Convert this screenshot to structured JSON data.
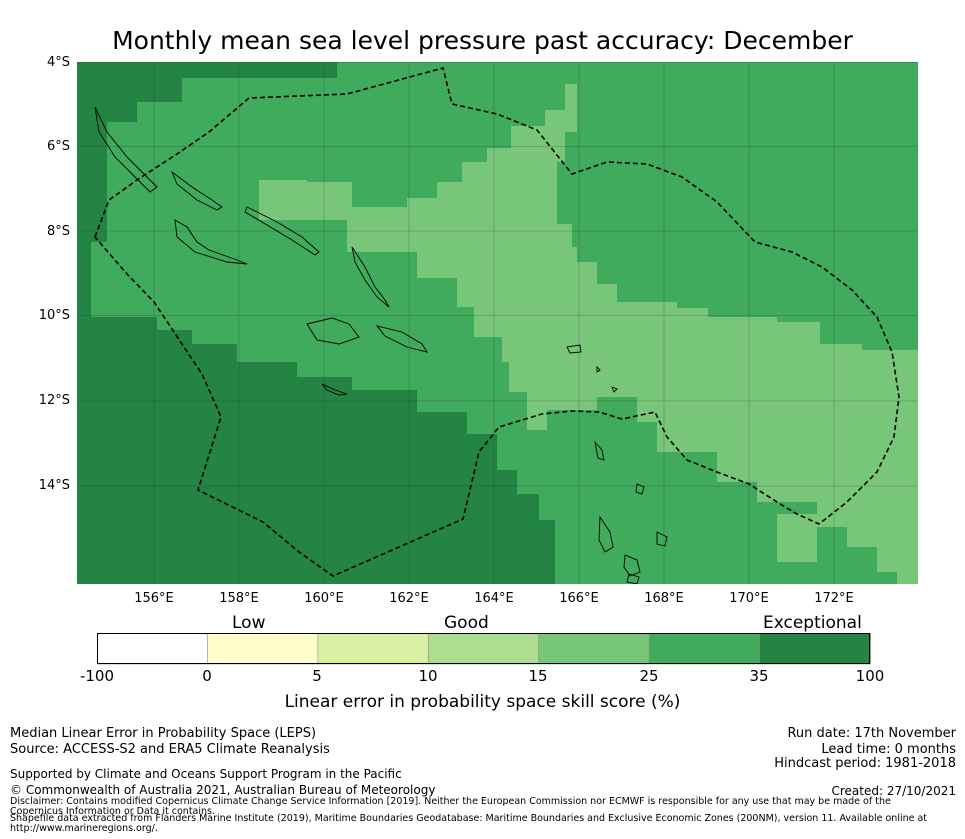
{
  "title": "Monthly mean sea level pressure past accuracy: December",
  "map": {
    "lat_ticks": [
      "4°S",
      "6°S",
      "8°S",
      "10°S",
      "12°S",
      "14°S"
    ],
    "lon_ticks": [
      "156°E",
      "158°E",
      "160°E",
      "162°E",
      "164°E",
      "166°E",
      "168°E",
      "170°E",
      "172°E"
    ],
    "lon_range": [
      154.2,
      174.0
    ],
    "lat_range": [
      -4.0,
      -16.3
    ],
    "eez_boundary": "dashed line"
  },
  "colorbar": {
    "categories": [
      {
        "name": "Low"
      },
      {
        "name": "Good"
      },
      {
        "name": "Exceptional"
      }
    ],
    "ticks": [
      "-100",
      "0",
      "5",
      "10",
      "15",
      "25",
      "35",
      "100"
    ],
    "colors": [
      "#ffffff",
      "#ffffcc",
      "#d9f0a3",
      "#addd8e",
      "#78c679",
      "#41ab5d",
      "#238443"
    ],
    "label": "Linear error in probability space skill score (%)"
  },
  "footer": {
    "left_lines": [
      "Median Linear Error in Probability Space (LEPS)",
      "Source: ACCESS-S2 and ERA5 Climate Reanalysis"
    ],
    "right_lines": [
      "Run date: 17th November",
      "Lead time: 0 months",
      "Hindcast period: 1981-2018"
    ],
    "supported": "Supported by Climate and Oceans Support Program in the Pacific",
    "copyright": "© Commonwealth of Australia 2021, Australian Bureau of Meteorology",
    "created": "Created: 27/10/2021",
    "disclaimer": "Disclaimer: Contains modified Copernicus Climate Change Service Information [2019]. Neither the European Commission nor ECMWF is responsible for any use that may be made of the Copernicus Information or Data it contains.",
    "shapefile": "Shapefile data extracted from Flanders Marine Institute (2019), Maritime Boundaries Geodatabase: Maritime Boundaries and Exclusive Economic Zones (200NM), version 11. Available online at http://www.marineregions.org/."
  }
}
